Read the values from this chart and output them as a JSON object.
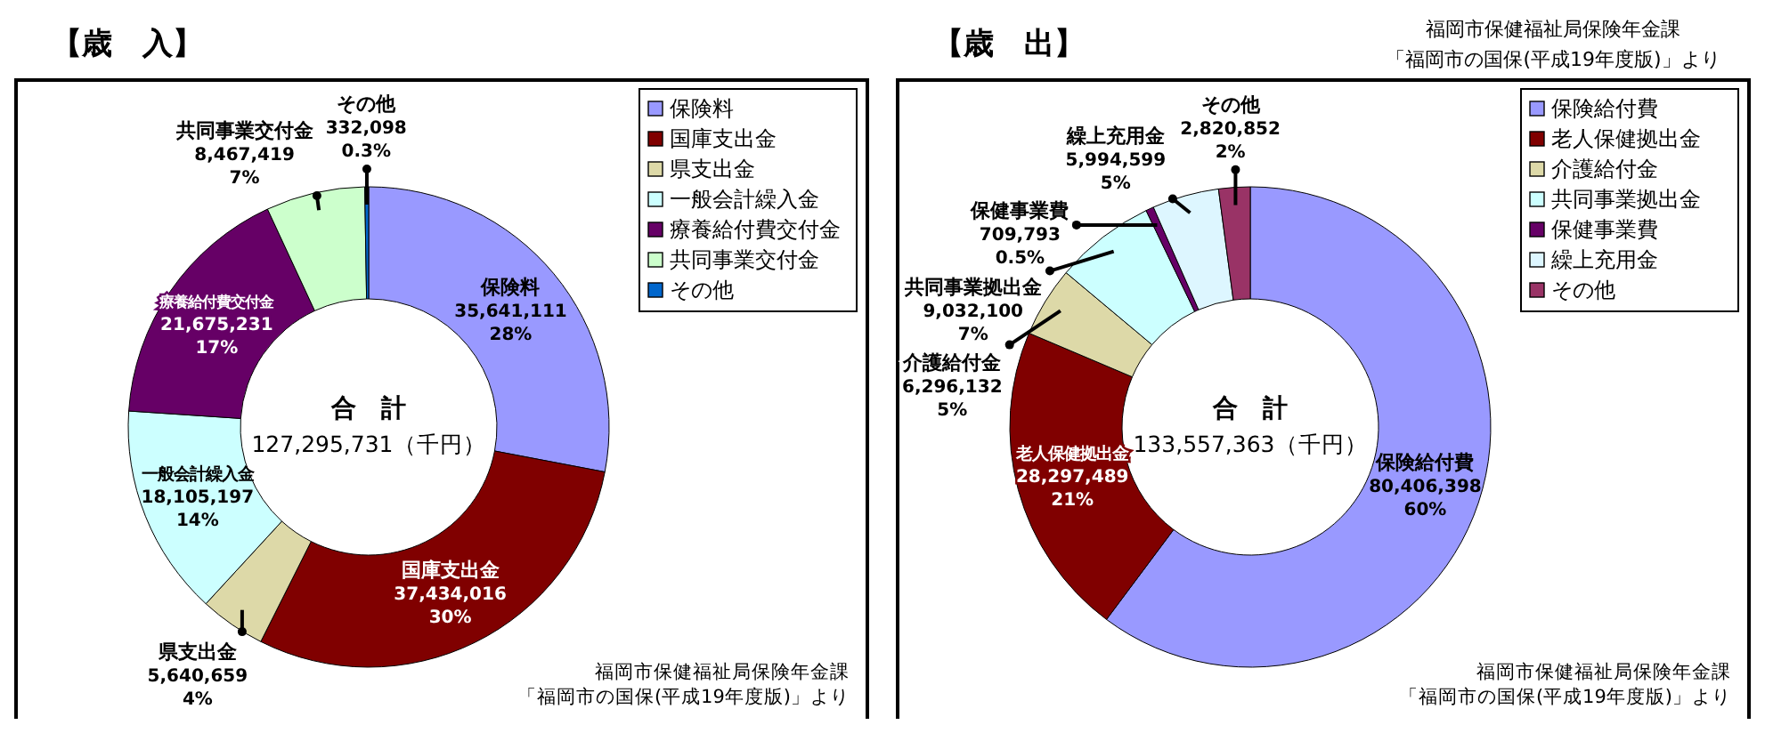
{
  "chart_data": [
    {
      "type": "donut",
      "title": "【歳　入】",
      "categories": [
        "保険料",
        "国庫支出金",
        "県支出金",
        "一般会計繰入金",
        "療養給付費交付金",
        "共同事業交付金",
        "その他"
      ],
      "values": [
        35641111,
        37434016,
        5640659,
        18105197,
        21675231,
        8467419,
        332098
      ],
      "colors": [
        "#9999ff",
        "#800000",
        "#ddd9a8",
        "#ccffff",
        "#660066",
        "#ccffcc",
        "#0066cc"
      ],
      "value_labels": [
        "35,641,111",
        "37,434,016",
        "5,640,659",
        "18,105,197",
        "21,675,231",
        "8,467,419",
        "332,098"
      ],
      "legend": "top right",
      "annotations": [
        "合　計",
        "127,295,731（千円）",
        "福岡市保健福祉局保険年金課",
        "「福岡市の国保(平成19年度版)」より",
        {
          "text": "28%",
          "x": "保険料"
        },
        {
          "text": "30%",
          "x": "国庫支出金"
        },
        {
          "text": "4%",
          "x": "県支出金"
        },
        {
          "text": "14%",
          "x": "一般会計繰入金"
        },
        {
          "text": "17%",
          "x": "療養給付費交付金"
        },
        {
          "text": "7%",
          "x": "共同事業交付金"
        },
        {
          "text": "0.3%",
          "x": "その他"
        }
      ]
    },
    {
      "type": "donut",
      "title": "【歳　出】",
      "categories": [
        "保険給付費",
        "老人保健拠出金",
        "介護給付金",
        "共同事業拠出金",
        "保健事業費",
        "繰上充用金",
        "その他"
      ],
      "values": [
        80406398,
        28297489,
        6296132,
        9032100,
        709793,
        5994599,
        2820852
      ],
      "colors": [
        "#9999ff",
        "#800000",
        "#ddd9a8",
        "#ccffff",
        "#660066",
        "#ddf6ff",
        "#993366"
      ],
      "value_labels": [
        "80,406,398",
        "28,297,489",
        "6,296,132",
        "9,032,100",
        "709,793",
        "5,994,599",
        "2,820,852"
      ],
      "legend": "top right",
      "annotations": [
        "合　計",
        "133,557,363（千円）",
        "福岡市保健福祉局保険年金課",
        "「福岡市の国保(平成19年度版)」より",
        "福岡市保健福祉局保険年金課",
        "「福岡市の国保(平成19年度版)」より",
        {
          "text": "60%",
          "x": "保険給付費"
        },
        {
          "text": "21%",
          "x": "老人保健拠出金"
        },
        {
          "text": "5%",
          "x": "介護給付金"
        },
        {
          "text": "7%",
          "x": "共同事業拠出金"
        },
        {
          "text": "0.5%",
          "x": "保健事業費"
        },
        {
          "text": "5%",
          "x": "繰上充用金"
        },
        {
          "text": "2%",
          "x": "その他"
        }
      ]
    }
  ]
}
